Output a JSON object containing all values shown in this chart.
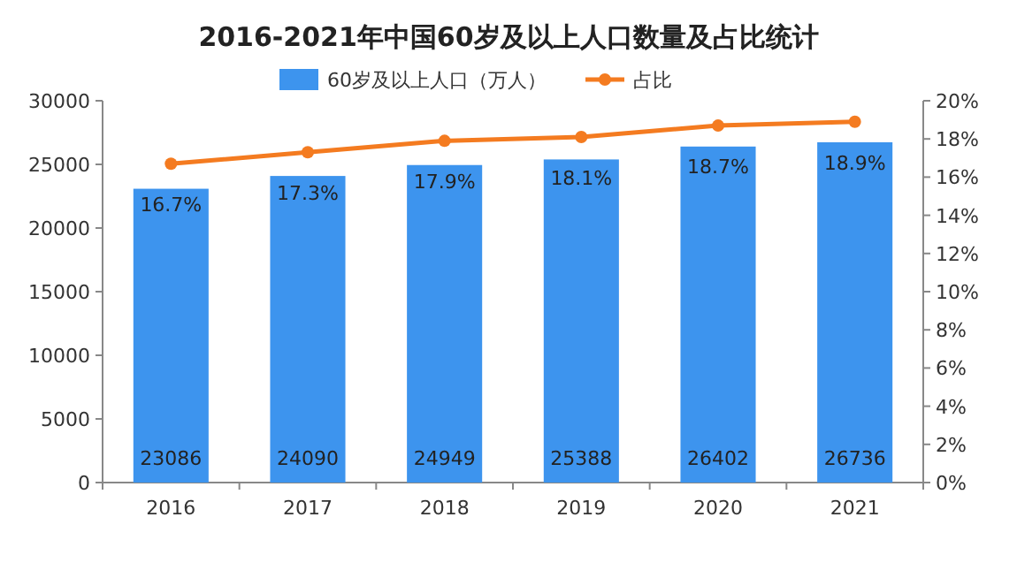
{
  "chart_data": {
    "type": "bar",
    "title": "2016-2021年中国60岁及以上人口数量及占比统计",
    "categories": [
      "2016",
      "2017",
      "2018",
      "2019",
      "2020",
      "2021"
    ],
    "series": [
      {
        "name": "60岁及以上人口（万人）",
        "color": "#3d94ee",
        "values": [
          23086,
          24090,
          24949,
          25388,
          26402,
          26736
        ],
        "value_labels": [
          "23086",
          "24090",
          "24949",
          "25388",
          "26402",
          "26736"
        ]
      },
      {
        "name": "占比",
        "type": "line",
        "axis": "y2",
        "color": "#f47b20",
        "values": [
          16.7,
          17.3,
          17.9,
          18.1,
          18.7,
          18.9
        ],
        "value_labels": [
          "16.7%",
          "17.3%",
          "17.9%",
          "18.1%",
          "18.7%",
          "18.9%"
        ]
      }
    ],
    "ylim": [
      0,
      30000
    ],
    "yticks": [
      0,
      5000,
      10000,
      15000,
      20000,
      25000,
      30000
    ],
    "y2lim": [
      0,
      20
    ],
    "y2ticks": [
      {
        "value": 0,
        "label": "0%"
      },
      {
        "value": 2,
        "label": "2%"
      },
      {
        "value": 4,
        "label": "4%"
      },
      {
        "value": 6,
        "label": "6%"
      },
      {
        "value": 8,
        "label": "8%"
      },
      {
        "value": 10,
        "label": "10%"
      },
      {
        "value": 12,
        "label": "12%"
      },
      {
        "value": 14,
        "label": "14%"
      },
      {
        "value": 16,
        "label": "16%"
      },
      {
        "value": 18,
        "label": "18%"
      },
      {
        "value": 20,
        "label": "20%"
      }
    ],
    "legend": "top",
    "marker": "circle"
  }
}
